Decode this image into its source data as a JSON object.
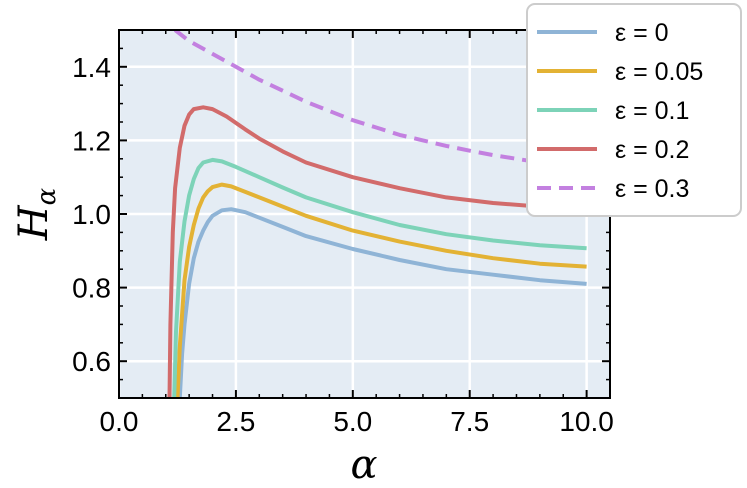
{
  "chart_data": {
    "type": "line",
    "title": "",
    "xlabel": "α",
    "ylabel": "H",
    "ylabel_subscript": "α",
    "xlim": [
      0.0,
      10.5
    ],
    "ylim": [
      0.5,
      1.5
    ],
    "xticks": [
      0.0,
      2.5,
      5.0,
      7.5,
      10.0
    ],
    "xtick_labels": [
      "0.0",
      "2.5",
      "5.0",
      "7.5",
      "10.0"
    ],
    "yticks": [
      0.6,
      0.8,
      1.0,
      1.2,
      1.4
    ],
    "ytick_labels": [
      "0.6",
      "0.8",
      "1.0",
      "1.2",
      "1.4"
    ],
    "grid": true,
    "background": "#e4ecf4",
    "legend_position": "top-right",
    "series": [
      {
        "name": "ε = 0",
        "color": "#8fb4d6",
        "dash": "solid",
        "points": [
          [
            1.3,
            0.5
          ],
          [
            1.35,
            0.62
          ],
          [
            1.4,
            0.7
          ],
          [
            1.5,
            0.81
          ],
          [
            1.6,
            0.88
          ],
          [
            1.7,
            0.925
          ],
          [
            1.8,
            0.955
          ],
          [
            1.9,
            0.978
          ],
          [
            2.0,
            0.995
          ],
          [
            2.2,
            1.01
          ],
          [
            2.4,
            1.013
          ],
          [
            2.7,
            1.005
          ],
          [
            3.0,
            0.99
          ],
          [
            3.5,
            0.965
          ],
          [
            4.0,
            0.94
          ],
          [
            5.0,
            0.905
          ],
          [
            6.0,
            0.875
          ],
          [
            7.0,
            0.85
          ],
          [
            8.0,
            0.835
          ],
          [
            9.0,
            0.82
          ],
          [
            10.0,
            0.81
          ]
        ]
      },
      {
        "name": "ε = 0.05",
        "color": "#e3b234",
        "dash": "solid",
        "points": [
          [
            1.25,
            0.5
          ],
          [
            1.3,
            0.64
          ],
          [
            1.4,
            0.82
          ],
          [
            1.5,
            0.91
          ],
          [
            1.6,
            0.97
          ],
          [
            1.7,
            1.015
          ],
          [
            1.8,
            1.045
          ],
          [
            1.9,
            1.062
          ],
          [
            2.0,
            1.073
          ],
          [
            2.2,
            1.08
          ],
          [
            2.4,
            1.075
          ],
          [
            2.7,
            1.06
          ],
          [
            3.0,
            1.045
          ],
          [
            3.5,
            1.02
          ],
          [
            4.0,
            0.995
          ],
          [
            5.0,
            0.955
          ],
          [
            6.0,
            0.925
          ],
          [
            7.0,
            0.9
          ],
          [
            8.0,
            0.88
          ],
          [
            9.0,
            0.865
          ],
          [
            10.0,
            0.857
          ]
        ]
      },
      {
        "name": "ε = 0.1",
        "color": "#7dd3b8",
        "dash": "solid",
        "points": [
          [
            1.18,
            0.5
          ],
          [
            1.22,
            0.68
          ],
          [
            1.3,
            0.87
          ],
          [
            1.4,
            0.98
          ],
          [
            1.5,
            1.05
          ],
          [
            1.6,
            1.095
          ],
          [
            1.7,
            1.125
          ],
          [
            1.8,
            1.14
          ],
          [
            2.0,
            1.147
          ],
          [
            2.2,
            1.143
          ],
          [
            2.5,
            1.128
          ],
          [
            3.0,
            1.1
          ],
          [
            3.5,
            1.072
          ],
          [
            4.0,
            1.045
          ],
          [
            5.0,
            1.005
          ],
          [
            6.0,
            0.97
          ],
          [
            7.0,
            0.945
          ],
          [
            8.0,
            0.928
          ],
          [
            9.0,
            0.915
          ],
          [
            10.0,
            0.907
          ]
        ]
      },
      {
        "name": "ε = 0.2",
        "color": "#d26b6b",
        "dash": "solid",
        "points": [
          [
            1.08,
            0.5
          ],
          [
            1.1,
            0.7
          ],
          [
            1.15,
            0.95
          ],
          [
            1.2,
            1.07
          ],
          [
            1.3,
            1.18
          ],
          [
            1.4,
            1.24
          ],
          [
            1.5,
            1.27
          ],
          [
            1.6,
            1.285
          ],
          [
            1.8,
            1.29
          ],
          [
            2.0,
            1.285
          ],
          [
            2.3,
            1.265
          ],
          [
            2.7,
            1.23
          ],
          [
            3.0,
            1.205
          ],
          [
            3.5,
            1.17
          ],
          [
            4.0,
            1.14
          ],
          [
            5.0,
            1.1
          ],
          [
            6.0,
            1.07
          ],
          [
            7.0,
            1.045
          ],
          [
            8.0,
            1.03
          ],
          [
            9.0,
            1.02
          ],
          [
            10.0,
            1.01
          ]
        ]
      },
      {
        "name": "ε = 0.3",
        "color": "#c380e0",
        "dash": "dashed",
        "points": [
          [
            1.2,
            1.5
          ],
          [
            1.5,
            1.47
          ],
          [
            2.0,
            1.435
          ],
          [
            2.5,
            1.4
          ],
          [
            3.0,
            1.365
          ],
          [
            3.5,
            1.335
          ],
          [
            4.0,
            1.305
          ],
          [
            4.5,
            1.28
          ],
          [
            5.0,
            1.255
          ],
          [
            5.5,
            1.235
          ],
          [
            6.0,
            1.215
          ],
          [
            6.5,
            1.2
          ],
          [
            7.0,
            1.185
          ],
          [
            7.5,
            1.172
          ],
          [
            8.0,
            1.16
          ],
          [
            8.5,
            1.15
          ],
          [
            9.0,
            1.14
          ],
          [
            9.5,
            1.132
          ],
          [
            10.0,
            1.125
          ]
        ]
      }
    ]
  }
}
